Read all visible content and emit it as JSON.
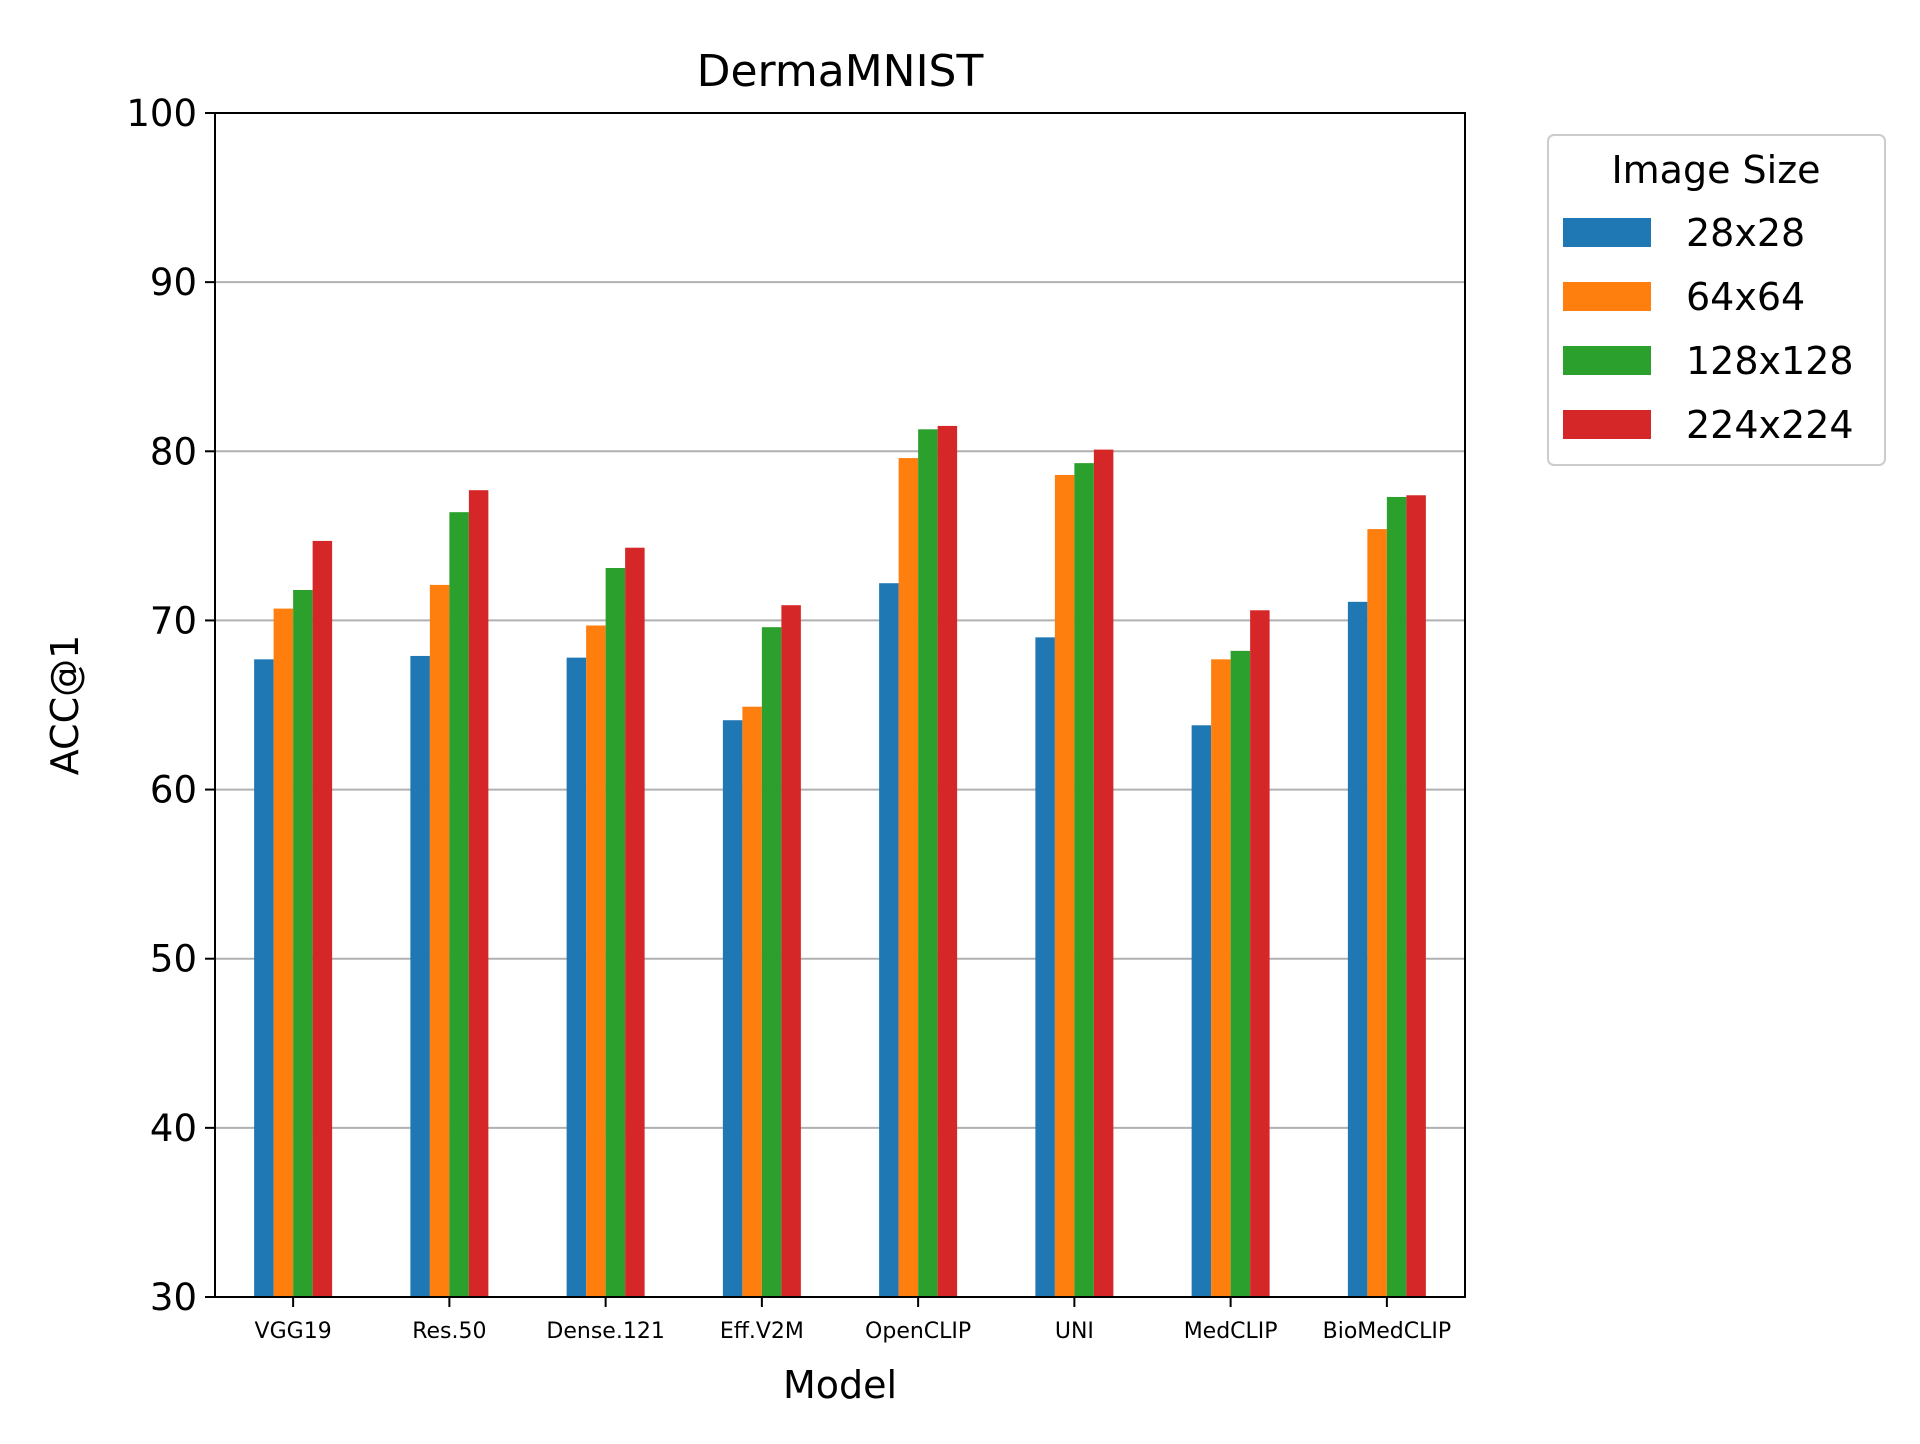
{
  "chart_data": {
    "type": "bar",
    "title": "DermaMNIST",
    "xlabel": "Model",
    "ylabel": "ACC@1",
    "ylim": [
      30,
      100
    ],
    "yticks": [
      30,
      40,
      50,
      60,
      70,
      80,
      90,
      100
    ],
    "grid": "y-axis on",
    "legend_position": "outside top-right",
    "legend_title": "Image Size",
    "categories": [
      "VGG19",
      "Res.50",
      "Dense.121",
      "Eff.V2M",
      "OpenCLIP",
      "UNI",
      "MedCLIP",
      "BioMedCLIP"
    ],
    "series": [
      {
        "name": "28x28",
        "color": "#1f77b4",
        "values": [
          67.7,
          67.9,
          67.8,
          64.1,
          72.2,
          69.0,
          63.8,
          71.1
        ]
      },
      {
        "name": "64x64",
        "color": "#ff7f0e",
        "values": [
          70.7,
          72.1,
          69.7,
          64.9,
          79.6,
          78.6,
          67.7,
          75.4
        ]
      },
      {
        "name": "128x128",
        "color": "#2ca02c",
        "values": [
          71.8,
          76.4,
          73.1,
          69.6,
          81.3,
          79.3,
          68.2,
          77.3
        ]
      },
      {
        "name": "224x224",
        "color": "#d62728",
        "values": [
          74.7,
          77.7,
          74.3,
          70.9,
          81.5,
          80.1,
          70.6,
          77.4
        ]
      }
    ]
  }
}
